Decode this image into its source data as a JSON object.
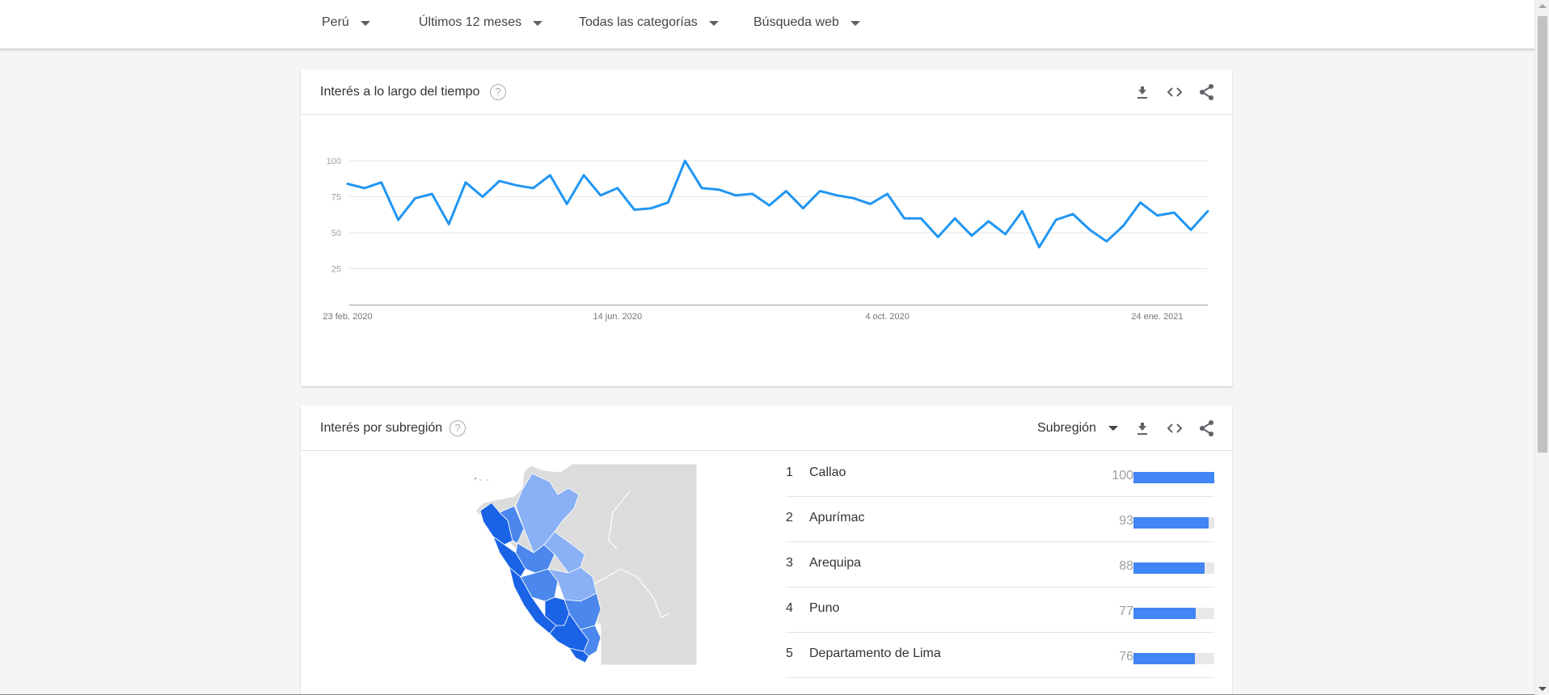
{
  "filters": {
    "country": "Perú",
    "period": "Últimos 12 meses",
    "category": "Todas las categorías",
    "search_type": "Búsqueda web"
  },
  "time_card": {
    "title": "Interés a lo largo del tiempo",
    "help": "?",
    "icons": [
      "download-icon",
      "embed-icon",
      "share-icon"
    ]
  },
  "chart_data": {
    "type": "line",
    "title": "",
    "xlabel": "",
    "ylabel": "",
    "ylim": [
      0,
      100
    ],
    "y_ticks": [
      25,
      50,
      75,
      100
    ],
    "x_tick_labels": [
      "23 feb. 2020",
      "14 jun. 2020",
      "4 oct. 2020",
      "24 ene. 2021"
    ],
    "x_tick_indices": [
      0,
      16,
      32,
      48
    ],
    "grid": true,
    "color": "#2196f3",
    "series": [
      {
        "values": [
          84,
          81,
          85,
          59,
          74,
          77,
          56,
          85,
          75,
          86,
          83,
          81,
          90,
          70,
          90,
          76,
          81,
          66,
          67,
          71,
          100,
          81,
          80,
          76,
          77,
          69,
          79,
          67,
          79,
          76,
          74,
          70,
          77,
          60,
          60,
          47,
          60,
          48,
          58,
          49,
          65,
          40,
          59,
          63,
          52,
          44,
          55,
          71,
          62,
          64,
          52,
          65
        ]
      }
    ]
  },
  "region_card": {
    "title": "Interés por subregión",
    "help": "?",
    "dropdown": "Subregión",
    "rows": [
      {
        "rank": "1",
        "name": "Callao",
        "value": "100",
        "level": 100
      },
      {
        "rank": "2",
        "name": "Apurímac",
        "value": "93",
        "level": 93
      },
      {
        "rank": "3",
        "name": "Arequipa",
        "value": "88",
        "level": 88
      },
      {
        "rank": "4",
        "name": "Puno",
        "value": "77",
        "level": 77
      },
      {
        "rank": "5",
        "name": "Departamento de Lima",
        "value": "76",
        "level": 76
      }
    ]
  },
  "colors": {
    "line": "#2196f3",
    "bar": "#4285f4",
    "map_dark": "#1a63e6",
    "map_mid": "#4c87ee",
    "map_light": "#8ab0f5",
    "map_land": "#dcdcdc"
  }
}
